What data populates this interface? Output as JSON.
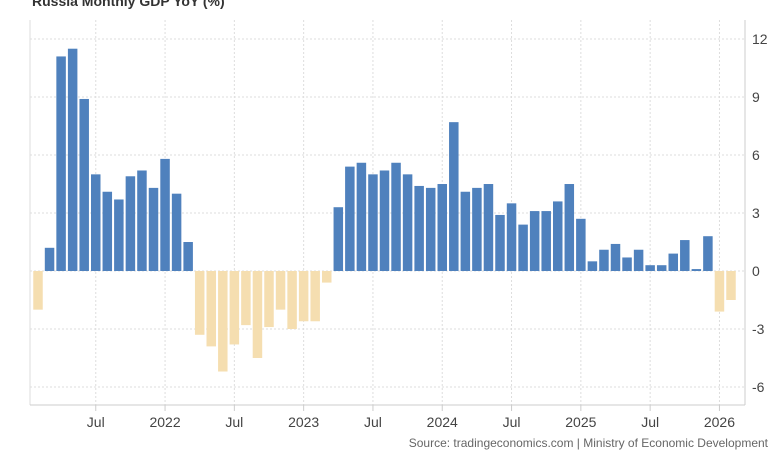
{
  "chart_data": {
    "type": "bar",
    "title": "Russia Monthly GDP YoY (%)",
    "source": "Source: tradingeconomics.com | Ministry of Economic Development",
    "start_month": "2021-02",
    "end_month": "2026-02",
    "values": [
      -2.0,
      1.2,
      11.1,
      11.5,
      8.9,
      5.0,
      4.1,
      3.7,
      4.9,
      5.2,
      4.3,
      5.8,
      4.0,
      1.5,
      -3.3,
      -3.9,
      -5.2,
      -3.8,
      -2.8,
      -4.5,
      -2.9,
      -2.0,
      -3.0,
      -2.6,
      -2.6,
      -0.6,
      3.3,
      5.4,
      5.6,
      5.0,
      5.2,
      5.6,
      5.0,
      4.4,
      4.3,
      4.5,
      7.7,
      4.1,
      4.3,
      4.5,
      2.9,
      3.5,
      2.4,
      3.1,
      3.1,
      3.6,
      4.5,
      2.7,
      0.5,
      1.1,
      1.4,
      0.7,
      1.1,
      0.3,
      0.3,
      0.9,
      1.6,
      0.1,
      1.8,
      -2.1,
      -1.5
    ],
    "ylim": [
      -7,
      12.5
    ],
    "yticks": [
      12,
      9,
      6,
      3,
      0,
      -3,
      -6
    ],
    "xticks": [
      {
        "label": "Jul",
        "month": "2021-07"
      },
      {
        "label": "2022",
        "month": "2022-01"
      },
      {
        "label": "Jul",
        "month": "2022-07"
      },
      {
        "label": "2023",
        "month": "2023-01"
      },
      {
        "label": "Jul",
        "month": "2023-07"
      },
      {
        "label": "2024",
        "month": "2024-01"
      },
      {
        "label": "Jul",
        "month": "2024-07"
      },
      {
        "label": "2025",
        "month": "2025-01"
      },
      {
        "label": "Jul",
        "month": "2025-07"
      },
      {
        "label": "2026",
        "month": "2026-01"
      }
    ],
    "y_axis_position": "right",
    "grid": true,
    "colors": {
      "positive": "#4f81bd",
      "negative": "#f5deb0"
    }
  }
}
